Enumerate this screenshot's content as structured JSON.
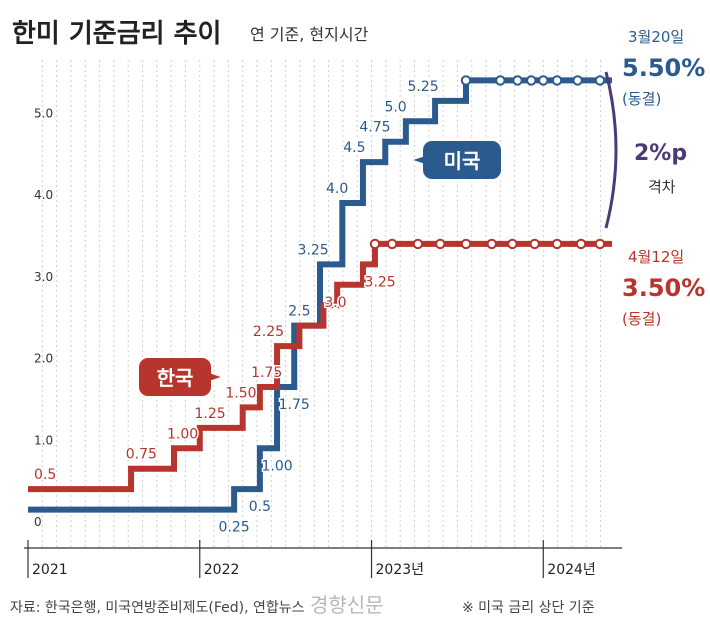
{
  "title": "한미 기준금리 추이",
  "subtitle": "연 기준, 현지시간",
  "colors": {
    "us": "#2b5a8f",
    "kr": "#b7352d",
    "gap": "#4a3a78",
    "grid": "#cfcfcf"
  },
  "chart_data": {
    "type": "line",
    "step": true,
    "ylim": [
      0,
      5.75
    ],
    "ylabel": "",
    "y_ticks": [
      {
        "value": 0,
        "label": "0"
      },
      {
        "value": 1,
        "label": "1.0"
      },
      {
        "value": 2,
        "label": "2.0"
      },
      {
        "value": 3,
        "label": "3.0"
      },
      {
        "value": 4,
        "label": "4.0"
      },
      {
        "value": 5,
        "label": "5.0"
      }
    ],
    "xlim": [
      2021.0,
      2024.4
    ],
    "x_ticks": [
      {
        "value": 2021.0,
        "label": "2021"
      },
      {
        "value": 2022.0,
        "label": "2022"
      },
      {
        "value": 2023.0,
        "label": "2023년"
      },
      {
        "value": 2024.0,
        "label": "2024년"
      }
    ],
    "series": [
      {
        "name": "미국",
        "key": "us",
        "points": [
          {
            "x": 2021.0,
            "y": 0.25
          },
          {
            "x": 2022.2,
            "y": 0.5
          },
          {
            "x": 2022.35,
            "y": 1.0
          },
          {
            "x": 2022.45,
            "y": 1.75
          },
          {
            "x": 2022.55,
            "y": 2.5
          },
          {
            "x": 2022.7,
            "y": 3.25
          },
          {
            "x": 2022.83,
            "y": 4.0
          },
          {
            "x": 2022.95,
            "y": 4.5
          },
          {
            "x": 2023.08,
            "y": 4.75
          },
          {
            "x": 2023.2,
            "y": 5.0
          },
          {
            "x": 2023.37,
            "y": 5.25
          },
          {
            "x": 2023.55,
            "y": 5.5
          },
          {
            "x": 2024.4,
            "y": 5.5
          }
        ],
        "labels": [
          {
            "text": "0.25",
            "x": 2022.2,
            "y": 0.25,
            "pos": "below"
          },
          {
            "text": "0.5",
            "x": 2022.35,
            "y": 0.5,
            "pos": "below"
          },
          {
            "text": "1.00",
            "x": 2022.45,
            "y": 1.0,
            "pos": "below"
          },
          {
            "text": "1.75",
            "x": 2022.55,
            "y": 1.75,
            "pos": "below"
          },
          {
            "text": "2.5",
            "x": 2022.58,
            "y": 2.5,
            "pos": "above"
          },
          {
            "text": "3.25",
            "x": 2022.66,
            "y": 3.25,
            "pos": "above"
          },
          {
            "text": "4.0",
            "x": 2022.8,
            "y": 4.0,
            "pos": "above"
          },
          {
            "text": "4.5",
            "x": 2022.9,
            "y": 4.5,
            "pos": "above"
          },
          {
            "text": "4.75",
            "x": 2023.02,
            "y": 4.75,
            "pos": "above"
          },
          {
            "text": "5.0",
            "x": 2023.14,
            "y": 5.0,
            "pos": "above"
          },
          {
            "text": "5.25",
            "x": 2023.3,
            "y": 5.25,
            "pos": "above"
          }
        ],
        "dots": [
          2023.55,
          2023.75,
          2023.85,
          2023.93,
          2024.0,
          2024.08,
          2024.2,
          2024.33
        ]
      },
      {
        "name": "한국",
        "key": "kr",
        "points": [
          {
            "x": 2021.0,
            "y": 0.5
          },
          {
            "x": 2021.6,
            "y": 0.75
          },
          {
            "x": 2021.85,
            "y": 1.0
          },
          {
            "x": 2022.0,
            "y": 1.25
          },
          {
            "x": 2022.25,
            "y": 1.5
          },
          {
            "x": 2022.35,
            "y": 1.75
          },
          {
            "x": 2022.45,
            "y": 2.25
          },
          {
            "x": 2022.58,
            "y": 2.5
          },
          {
            "x": 2022.72,
            "y": 2.75
          },
          {
            "x": 2022.8,
            "y": 3.0
          },
          {
            "x": 2022.95,
            "y": 3.25
          },
          {
            "x": 2023.02,
            "y": 3.5
          },
          {
            "x": 2024.4,
            "y": 3.5
          }
        ],
        "labels": [
          {
            "text": "0.5",
            "x": 2021.1,
            "y": 0.5,
            "pos": "above"
          },
          {
            "text": "0.75",
            "x": 2021.66,
            "y": 0.75,
            "pos": "above"
          },
          {
            "text": "1.00",
            "x": 2021.9,
            "y": 1.0,
            "pos": "above"
          },
          {
            "text": "1.25",
            "x": 2022.06,
            "y": 1.25,
            "pos": "above"
          },
          {
            "text": "1.50",
            "x": 2022.24,
            "y": 1.5,
            "pos": "above"
          },
          {
            "text": "1.75",
            "x": 2022.39,
            "y": 1.75,
            "pos": "above"
          },
          {
            "text": "2.25",
            "x": 2022.4,
            "y": 2.25,
            "pos": "above"
          },
          {
            "text": "3.0",
            "x": 2022.79,
            "y": 3.0,
            "pos": "below"
          },
          {
            "text": "3.25",
            "x": 2023.05,
            "y": 3.25,
            "pos": "below"
          }
        ],
        "dots": [
          2023.02,
          2023.12,
          2023.27,
          2023.4,
          2023.55,
          2023.7,
          2023.82,
          2023.95,
          2024.08,
          2024.22,
          2024.33
        ]
      }
    ],
    "annotations": {
      "us_date": "3월20일",
      "us_value": "5.50%",
      "us_status": "(동결)",
      "kr_date": "4월12일",
      "kr_value": "3.50%",
      "kr_status": "(동결)",
      "gap_value": "2%p",
      "gap_label": "격차",
      "us_badge": "미국",
      "kr_badge": "한국"
    }
  },
  "footer": {
    "source": "자료: 한국은행, 미국연방준비제도(Fed), 연합뉴스",
    "note": "※ 미국 금리 상단 기준",
    "watermark": "경향신문"
  }
}
